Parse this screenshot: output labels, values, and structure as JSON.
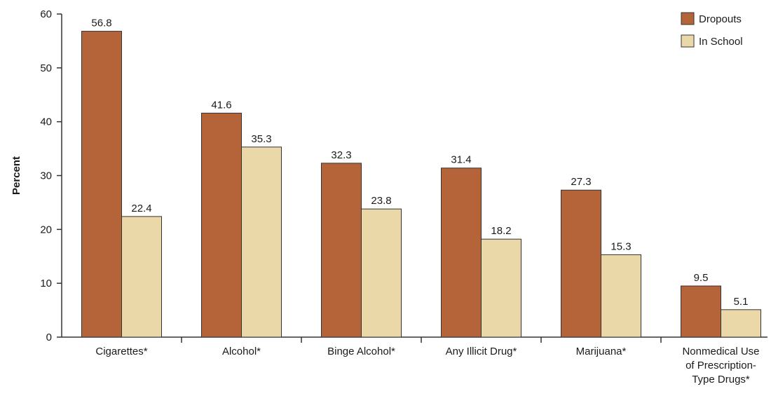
{
  "chart_data": {
    "type": "bar",
    "ylabel": "Percent",
    "xlabel": "",
    "ylim": [
      0,
      60
    ],
    "yticks": [
      0,
      10,
      20,
      30,
      40,
      50,
      60
    ],
    "categories": [
      [
        "Cigarettes*"
      ],
      [
        "Alcohol*"
      ],
      [
        "Binge Alcohol*"
      ],
      [
        "Any Illicit Drug*"
      ],
      [
        "Marijuana*"
      ],
      [
        "Nonmedical Use",
        "of Prescription-",
        "Type Drugs*"
      ]
    ],
    "series": [
      {
        "name": "Dropouts",
        "color": "#b5643a",
        "values": [
          56.8,
          41.6,
          32.3,
          31.4,
          27.3,
          9.5
        ]
      },
      {
        "name": "In School",
        "color": "#ebd8a8",
        "values": [
          22.4,
          35.3,
          23.8,
          18.2,
          15.3,
          5.1
        ]
      }
    ],
    "legend_position": "top-right",
    "grid": false,
    "bar_outline_color": "#333333"
  }
}
